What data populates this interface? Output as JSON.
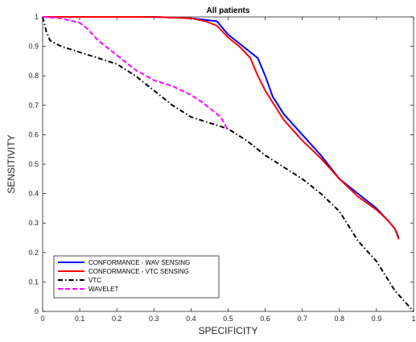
{
  "chart_data": {
    "type": "line",
    "title": "All patients",
    "xlabel": "SPECIFICITY",
    "ylabel": "SENSITIVITY",
    "xlim": [
      0,
      1
    ],
    "ylim": [
      0,
      1
    ],
    "xticks": [
      "0",
      "0.1",
      "0.2",
      "0.3",
      "0.4",
      "0.5",
      "0.6",
      "0.7",
      "0.8",
      "0.9",
      "1"
    ],
    "yticks": [
      "0",
      "0.1",
      "0.2",
      "0.3",
      "0.4",
      "0.5",
      "0.6",
      "0.7",
      "0.8",
      "0.9",
      "1"
    ],
    "grid": false,
    "legend_position": "bottom-left",
    "series": [
      {
        "name": "CONFORMANCE - WAV SENSING",
        "color": "#0000ff",
        "dash": "solid",
        "x": [
          0.0,
          0.1,
          0.2,
          0.3,
          0.4,
          0.44,
          0.47,
          0.5,
          0.53,
          0.56,
          0.58,
          0.6,
          0.62,
          0.65,
          0.7,
          0.75,
          0.8,
          0.85,
          0.9,
          0.93,
          0.95,
          0.96
        ],
        "y": [
          1.0,
          1.0,
          1.0,
          1.0,
          0.995,
          0.99,
          0.985,
          0.94,
          0.91,
          0.88,
          0.86,
          0.8,
          0.73,
          0.67,
          0.6,
          0.53,
          0.45,
          0.4,
          0.35,
          0.31,
          0.28,
          0.25
        ]
      },
      {
        "name": "CONFORMANCE - VTC SENSING",
        "color": "#ff0000",
        "dash": "solid",
        "x": [
          0.0,
          0.1,
          0.2,
          0.3,
          0.4,
          0.44,
          0.47,
          0.5,
          0.53,
          0.56,
          0.58,
          0.6,
          0.62,
          0.65,
          0.7,
          0.75,
          0.8,
          0.85,
          0.9,
          0.93,
          0.95,
          0.96
        ],
        "y": [
          1.0,
          1.0,
          1.0,
          1.0,
          0.995,
          0.985,
          0.97,
          0.93,
          0.9,
          0.86,
          0.8,
          0.75,
          0.71,
          0.65,
          0.58,
          0.52,
          0.45,
          0.39,
          0.345,
          0.31,
          0.28,
          0.245
        ]
      },
      {
        "name": "VTC",
        "color": "#000000",
        "dash": "dashdot",
        "x": [
          0.0,
          0.01,
          0.02,
          0.05,
          0.1,
          0.15,
          0.2,
          0.25,
          0.3,
          0.35,
          0.4,
          0.45,
          0.5,
          0.55,
          0.6,
          0.65,
          0.7,
          0.75,
          0.8,
          0.83,
          0.85,
          0.9,
          0.95,
          1.0
        ],
        "y": [
          1.0,
          0.95,
          0.92,
          0.9,
          0.88,
          0.86,
          0.84,
          0.8,
          0.75,
          0.7,
          0.66,
          0.64,
          0.62,
          0.58,
          0.53,
          0.49,
          0.45,
          0.4,
          0.34,
          0.28,
          0.24,
          0.17,
          0.07,
          0.0
        ]
      },
      {
        "name": "WAVELET",
        "color": "#ff00ff",
        "dash": "dashed",
        "x": [
          0.0,
          0.05,
          0.1,
          0.12,
          0.15,
          0.2,
          0.25,
          0.3,
          0.35,
          0.4,
          0.43,
          0.46,
          0.48,
          0.5
        ],
        "y": [
          1.0,
          0.995,
          0.98,
          0.96,
          0.92,
          0.87,
          0.82,
          0.785,
          0.765,
          0.735,
          0.71,
          0.68,
          0.66,
          0.615
        ]
      }
    ]
  }
}
